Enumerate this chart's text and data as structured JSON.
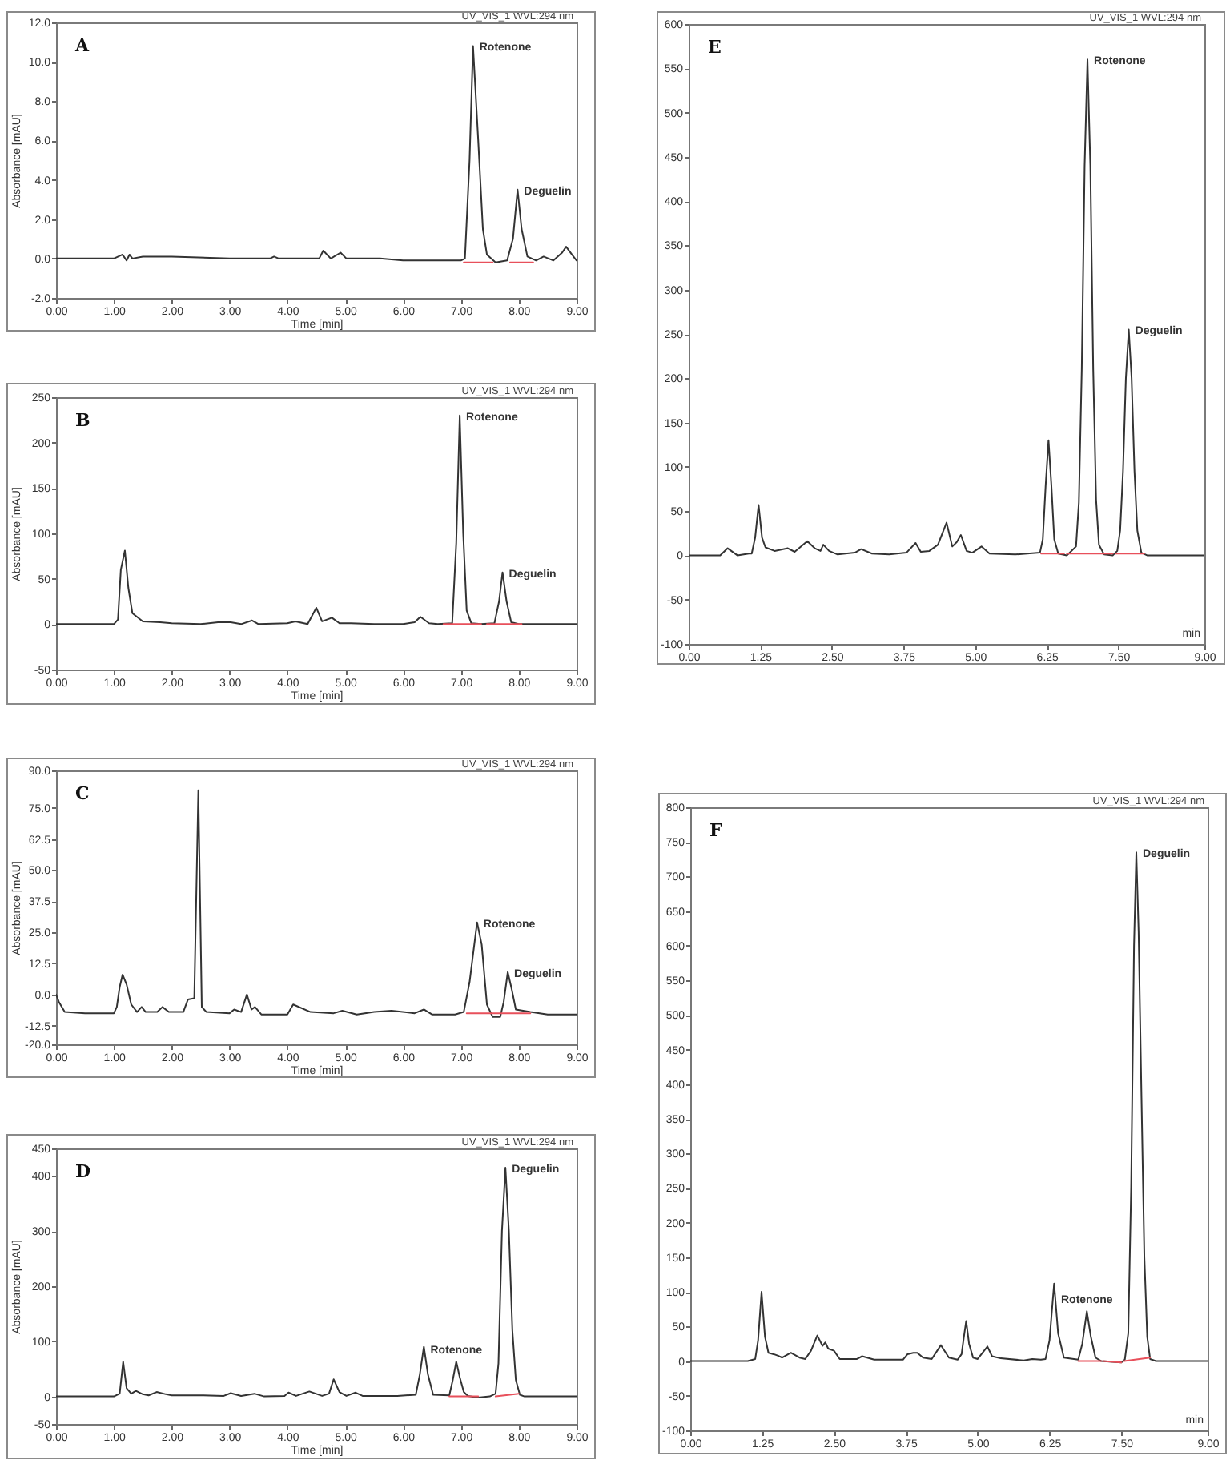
{
  "chart_data": [
    {
      "type": "line",
      "title": "A",
      "subtitle": "UV_VIS_1 WVL:294 nm",
      "xlabel": "Time [min]",
      "ylabel": "Absorbance [mAU]",
      "series": [
        {
          "color": "#333333",
          "x": [
            0,
            1.0,
            1.15,
            1.22,
            1.27,
            1.32,
            1.5,
            2.0,
            3.0,
            3.7,
            3.77,
            3.85,
            4.4,
            4.55,
            4.62,
            4.75,
            4.92,
            5.02,
            5.3,
            5.45,
            5.6,
            6.0,
            6.5,
            7.0,
            7.07,
            7.15,
            7.21,
            7.3,
            7.38,
            7.45,
            7.6,
            7.8,
            7.9,
            7.98,
            8.05,
            8.15,
            8.3,
            8.43,
            8.6,
            8.75,
            8.82,
            8.92,
            9.0
          ],
          "values": [
            0,
            0,
            0.2,
            -0.1,
            0.2,
            0,
            0.1,
            0.1,
            0,
            0,
            0.1,
            0,
            0,
            0,
            0.4,
            0,
            0.3,
            0,
            0,
            0,
            0,
            -0.1,
            -0.1,
            -0.1,
            0,
            5,
            10.8,
            6,
            1.5,
            0.2,
            -0.2,
            -0.1,
            1,
            3.5,
            1.5,
            0.1,
            -0.1,
            0.1,
            -0.1,
            0.3,
            0.6,
            0.2,
            -0.1
          ]
        },
        {
          "color": "#e8505b",
          "x": [
            7.05,
            7.55,
            7.56,
            7.85,
            8.25
          ],
          "values": [
            -0.2,
            -0.2,
            null,
            -0.2,
            -0.2
          ]
        }
      ],
      "xlim": [
        0,
        9
      ],
      "ylim": [
        -2,
        12
      ],
      "xticks": [
        {
          "value": 0,
          "label": "0.00"
        },
        {
          "value": 1,
          "label": "1.00"
        },
        {
          "value": 2,
          "label": "2.00"
        },
        {
          "value": 3,
          "label": "3.00"
        },
        {
          "value": 4,
          "label": "4.00"
        },
        {
          "value": 5,
          "label": "5.00"
        },
        {
          "value": 6,
          "label": "6.00"
        },
        {
          "value": 7,
          "label": "7.00"
        },
        {
          "value": 8,
          "label": "8.00"
        },
        {
          "value": 9,
          "label": "9.00"
        }
      ],
      "yticks": [
        {
          "value": -2,
          "label": "-2.0"
        },
        {
          "value": 0,
          "label": "0.0"
        },
        {
          "value": 2,
          "label": "2.0"
        },
        {
          "value": 4,
          "label": "4.0"
        },
        {
          "value": 6,
          "label": "6.0"
        },
        {
          "value": 8,
          "label": "8.0"
        },
        {
          "value": 10,
          "label": "10.0"
        },
        {
          "value": 12,
          "label": "12.0"
        }
      ],
      "annotations": [
        {
          "text": "Rotenone",
          "x": 7.21,
          "y": 10.8
        },
        {
          "text": "Deguelin",
          "x": 7.98,
          "y": 3.5
        }
      ]
    },
    {
      "type": "line",
      "title": "B",
      "subtitle": "UV_VIS_1 WVL:294 nm",
      "xlabel": "Time [min]",
      "ylabel": "Absorbance [mAU]",
      "series": [
        {
          "color": "#333333",
          "x": [
            0,
            1.0,
            1.07,
            1.12,
            1.19,
            1.25,
            1.32,
            1.4,
            1.5,
            1.8,
            2.0,
            2.5,
            2.8,
            3.02,
            3.2,
            3.39,
            3.5,
            4.0,
            4.14,
            4.35,
            4.5,
            4.6,
            4.77,
            4.9,
            5.1,
            5.5,
            6.0,
            6.2,
            6.3,
            6.45,
            6.6,
            6.85,
            6.92,
            6.98,
            7.04,
            7.1,
            7.18,
            7.35,
            7.58,
            7.66,
            7.72,
            7.79,
            7.87,
            8.0,
            9.0
          ],
          "values": [
            0,
            0,
            5,
            60,
            81,
            40,
            12,
            8,
            3,
            2,
            1,
            0,
            2,
            2,
            0,
            4,
            0,
            1,
            3,
            0,
            18,
            3,
            7,
            1,
            1,
            0,
            0,
            2,
            8,
            1,
            0,
            1,
            90,
            230,
            100,
            15,
            1,
            0,
            1,
            25,
            57,
            25,
            2,
            0,
            0
          ]
        },
        {
          "color": "#e8505b",
          "x": [
            6.7,
            7.35,
            7.4,
            7.45,
            8.05
          ],
          "values": [
            0,
            0,
            null,
            0,
            0
          ]
        }
      ],
      "xlim": [
        0,
        9
      ],
      "ylim": [
        -50,
        250
      ],
      "xticks": [
        {
          "value": 0,
          "label": "0.00"
        },
        {
          "value": 1,
          "label": "1.00"
        },
        {
          "value": 2,
          "label": "2.00"
        },
        {
          "value": 3,
          "label": "3.00"
        },
        {
          "value": 4,
          "label": "4.00"
        },
        {
          "value": 5,
          "label": "5.00"
        },
        {
          "value": 6,
          "label": "6.00"
        },
        {
          "value": 7,
          "label": "7.00"
        },
        {
          "value": 8,
          "label": "8.00"
        },
        {
          "value": 9,
          "label": "9.00"
        }
      ],
      "yticks": [
        -50,
        0,
        50,
        100,
        150,
        200,
        250
      ],
      "annotations": [
        {
          "text": "Rotenone",
          "x": 6.98,
          "y": 230
        },
        {
          "text": "Deguelin",
          "x": 7.72,
          "y": 57
        }
      ]
    },
    {
      "type": "line",
      "title": "C",
      "subtitle": "UV_VIS_1 WVL:294 nm",
      "xlabel": "Time [min]",
      "ylabel": "Absorbance [mAU]",
      "series": [
        {
          "color": "#333333",
          "x": [
            0,
            0.05,
            0.15,
            0.5,
            1.0,
            1.05,
            1.1,
            1.15,
            1.22,
            1.3,
            1.4,
            1.48,
            1.55,
            1.75,
            1.84,
            1.95,
            2.2,
            2.28,
            2.39,
            2.46,
            2.52,
            2.6,
            3.0,
            3.08,
            3.2,
            3.3,
            3.38,
            3.44,
            3.55,
            4.0,
            4.1,
            4.4,
            4.8,
            4.95,
            5.2,
            5.5,
            5.8,
            6.2,
            6.36,
            6.5,
            6.9,
            7.05,
            7.15,
            7.28,
            7.36,
            7.45,
            7.55,
            7.68,
            7.74,
            7.81,
            7.88,
            7.95,
            8.2,
            8.5,
            9.0
          ],
          "values": [
            0,
            -3,
            -7,
            -7.5,
            -7.5,
            -5,
            3,
            8,
            4,
            -4,
            -7,
            -5,
            -7,
            -7,
            -5,
            -7,
            -7,
            -2,
            -1.5,
            82,
            -5,
            -7,
            -7.5,
            -6,
            -7,
            0,
            -6,
            -5,
            -8,
            -8,
            -4,
            -7,
            -7.5,
            -6.5,
            -8,
            -7,
            -6.5,
            -7.5,
            -6,
            -8,
            -8,
            -7,
            5,
            29,
            20,
            -4,
            -9,
            -9,
            -3,
            9,
            2,
            -6,
            -7,
            -8,
            -8
          ]
        },
        {
          "color": "#e8505b",
          "x": [
            7.1,
            8.2
          ],
          "values": [
            -7.5,
            -7.5
          ]
        }
      ],
      "xlim": [
        0,
        9
      ],
      "ylim": [
        -20,
        90
      ],
      "xticks": [
        {
          "value": 0,
          "label": "0.00"
        },
        {
          "value": 1,
          "label": "1.00"
        },
        {
          "value": 2,
          "label": "2.00"
        },
        {
          "value": 3,
          "label": "3.00"
        },
        {
          "value": 4,
          "label": "4.00"
        },
        {
          "value": 5,
          "label": "5.00"
        },
        {
          "value": 6,
          "label": "6.00"
        },
        {
          "value": 7,
          "label": "7.00"
        },
        {
          "value": 8,
          "label": "8.00"
        },
        {
          "value": 9,
          "label": "9.00"
        }
      ],
      "yticks": [
        {
          "value": -20,
          "label": "-20.0"
        },
        {
          "value": -12.5,
          "label": "-12.5"
        },
        {
          "value": 0,
          "label": "0.0"
        },
        {
          "value": 12.5,
          "label": "12.5"
        },
        {
          "value": 25,
          "label": "25.0"
        },
        {
          "value": 37.5,
          "label": "37.5"
        },
        {
          "value": 50,
          "label": "50.0"
        },
        {
          "value": 62.5,
          "label": "62.5"
        },
        {
          "value": 75,
          "label": "75.0"
        },
        {
          "value": 90,
          "label": "90.0"
        }
      ],
      "annotations": [
        {
          "text": "Rotenone",
          "x": 7.28,
          "y": 29
        },
        {
          "text": "Deguelin",
          "x": 7.81,
          "y": 9
        }
      ]
    },
    {
      "type": "line",
      "title": "D",
      "subtitle": "UV_VIS_1 WVL:294 nm",
      "xlabel": "Time [min]",
      "ylabel": "Absorbance [mAU]",
      "series": [
        {
          "color": "#333333",
          "x": [
            0,
            1.0,
            1.1,
            1.16,
            1.22,
            1.3,
            1.38,
            1.5,
            1.6,
            1.74,
            1.9,
            2.0,
            2.5,
            2.9,
            3.02,
            3.2,
            3.43,
            3.6,
            3.95,
            4.02,
            4.15,
            4.38,
            4.6,
            4.72,
            4.8,
            4.9,
            5.02,
            5.18,
            5.3,
            5.9,
            6.22,
            6.29,
            6.36,
            6.43,
            6.52,
            6.8,
            6.86,
            6.92,
            6.98,
            7.05,
            7.12,
            7.3,
            7.5,
            7.6,
            7.65,
            7.71,
            7.77,
            7.83,
            7.89,
            7.95,
            8.02,
            8.1,
            9.0
          ],
          "values": [
            0,
            0,
            5,
            63,
            15,
            5,
            10,
            4,
            2,
            8,
            4,
            2,
            2,
            1,
            6,
            1,
            5,
            0,
            1,
            7,
            1,
            9,
            1,
            5,
            31,
            8,
            1,
            7,
            1,
            1,
            3,
            40,
            90,
            40,
            3,
            2,
            30,
            63,
            35,
            8,
            1,
            -2,
            0,
            5,
            60,
            300,
            415,
            300,
            120,
            30,
            3,
            0,
            0
          ]
        },
        {
          "color": "#e8505b",
          "x": [
            6.8,
            7.3,
            7.35,
            7.6,
            8.0
          ],
          "values": [
            0,
            0,
            null,
            0,
            5
          ]
        }
      ],
      "xlim": [
        0,
        9
      ],
      "ylim": [
        -50,
        450
      ],
      "xticks": [
        {
          "value": 0,
          "label": "0.00"
        },
        {
          "value": 1,
          "label": "1.00"
        },
        {
          "value": 2,
          "label": "2.00"
        },
        {
          "value": 3,
          "label": "3.00"
        },
        {
          "value": 4,
          "label": "4.00"
        },
        {
          "value": 5,
          "label": "5.00"
        },
        {
          "value": 6,
          "label": "6.00"
        },
        {
          "value": 7,
          "label": "7.00"
        },
        {
          "value": 8,
          "label": "8.00"
        },
        {
          "value": 9,
          "label": "9.00"
        }
      ],
      "yticks": [
        -50,
        0,
        100,
        200,
        300,
        400,
        450
      ],
      "annotations": [
        {
          "text": "Rotenone",
          "x": 6.92,
          "y": 63
        },
        {
          "text": "Deguelin",
          "x": 7.77,
          "y": 415
        }
      ]
    },
    {
      "type": "line",
      "title": "E",
      "subtitle": "UV_VIS_1 WVL:294 nm",
      "xlabel": "min",
      "series": [
        {
          "color": "#333333",
          "x": [
            0,
            0.55,
            0.68,
            0.85,
            1.05,
            1.1,
            1.16,
            1.22,
            1.28,
            1.34,
            1.5,
            1.73,
            1.85,
            2.07,
            2.2,
            2.3,
            2.35,
            2.45,
            2.6,
            2.9,
            3.01,
            3.2,
            3.5,
            3.8,
            3.96,
            4.05,
            4.2,
            4.35,
            4.5,
            4.6,
            4.68,
            4.75,
            4.85,
            4.95,
            5.11,
            5.25,
            5.7,
            6.13,
            6.18,
            6.23,
            6.28,
            6.33,
            6.38,
            6.45,
            6.6,
            6.76,
            6.81,
            6.86,
            6.91,
            6.96,
            7.01,
            7.06,
            7.11,
            7.16,
            7.25,
            7.4,
            7.48,
            7.53,
            7.58,
            7.63,
            7.68,
            7.73,
            7.78,
            7.83,
            7.9,
            8.0,
            9.0
          ],
          "values": [
            0,
            0,
            8,
            0,
            2,
            2,
            20,
            57,
            20,
            9,
            5,
            8,
            4,
            16,
            8,
            5,
            12,
            5,
            1,
            3,
            7,
            2,
            1,
            3,
            14,
            4,
            5,
            12,
            37,
            10,
            15,
            23,
            5,
            3,
            10,
            2,
            1,
            3,
            18,
            79,
            130,
            79,
            18,
            2,
            0,
            10,
            60,
            210,
            440,
            560,
            440,
            210,
            63,
            12,
            1,
            0,
            5,
            28,
            95,
            200,
            255,
            200,
            95,
            28,
            3,
            0,
            0
          ]
        },
        {
          "color": "#e8505b",
          "x": [
            6.15,
            6.55,
            6.57,
            6.6,
            7.4,
            7.42,
            7.45,
            7.95
          ],
          "values": [
            2,
            2,
            null,
            2,
            2,
            null,
            2,
            2
          ]
        }
      ],
      "xlim": [
        0,
        9
      ],
      "ylim": [
        -100,
        600
      ],
      "xticks": [
        {
          "value": 0,
          "label": "0.00"
        },
        {
          "value": 1.25,
          "label": "1.25"
        },
        {
          "value": 2.5,
          "label": "2.50"
        },
        {
          "value": 3.75,
          "label": "3.75"
        },
        {
          "value": 5,
          "label": "5.00"
        },
        {
          "value": 6.25,
          "label": "6.25"
        },
        {
          "value": 7.5,
          "label": "7.50"
        },
        {
          "value": 9,
          "label": "9.00"
        }
      ],
      "yticks": [
        -100,
        -50,
        0,
        50,
        100,
        150,
        200,
        250,
        300,
        350,
        400,
        450,
        500,
        550,
        600
      ],
      "annotations": [
        {
          "text": "Rotenone",
          "x": 6.96,
          "y": 560
        },
        {
          "text": "Deguelin",
          "x": 7.68,
          "y": 255
        }
      ]
    },
    {
      "type": "line",
      "title": "F",
      "subtitle": "UV_VIS_1 WVL:294 nm",
      "xlabel": "min",
      "series": [
        {
          "color": "#333333",
          "x": [
            0,
            1.0,
            1.13,
            1.18,
            1.24,
            1.3,
            1.36,
            1.45,
            1.52,
            1.6,
            1.75,
            1.9,
            2.0,
            2.1,
            2.21,
            2.3,
            2.35,
            2.4,
            2.5,
            2.6,
            2.9,
            2.99,
            3.2,
            3.7,
            3.78,
            3.88,
            3.95,
            4.05,
            4.2,
            4.36,
            4.5,
            4.65,
            4.72,
            4.76,
            4.8,
            4.85,
            4.92,
            5.0,
            5.17,
            5.25,
            5.4,
            5.8,
            5.95,
            6.1,
            6.18,
            6.25,
            6.33,
            6.4,
            6.5,
            6.75,
            6.82,
            6.9,
            6.97,
            7.05,
            7.15,
            7.5,
            7.56,
            7.62,
            7.67,
            7.72,
            7.76,
            7.8,
            7.85,
            7.9,
            7.95,
            8.0,
            8.1,
            9.0
          ],
          "values": [
            0,
            0,
            3,
            30,
            100,
            35,
            12,
            10,
            8,
            5,
            12,
            5,
            3,
            15,
            37,
            22,
            27,
            18,
            15,
            3,
            3,
            7,
            2,
            2,
            10,
            12,
            12,
            5,
            3,
            23,
            5,
            2,
            10,
            35,
            58,
            25,
            5,
            3,
            21,
            7,
            4,
            1,
            3,
            2,
            3,
            30,
            112,
            40,
            5,
            2,
            25,
            72,
            35,
            5,
            0,
            -2,
            2,
            40,
            250,
            600,
            735,
            620,
            380,
            150,
            35,
            3,
            0,
            0
          ]
        },
        {
          "color": "#e8505b",
          "x": [
            6.75,
            7.15,
            7.16,
            7.18,
            7.5,
            7.52,
            7.55,
            8.0
          ],
          "values": [
            0,
            0,
            null,
            0,
            -2,
            null,
            0,
            5
          ]
        }
      ],
      "xlim": [
        0,
        9
      ],
      "ylim": [
        -100,
        800
      ],
      "xticks": [
        {
          "value": 0,
          "label": "0.00"
        },
        {
          "value": 1.25,
          "label": "1.25"
        },
        {
          "value": 2.5,
          "label": "2.50"
        },
        {
          "value": 3.75,
          "label": "3.75"
        },
        {
          "value": 5,
          "label": "5.00"
        },
        {
          "value": 6.25,
          "label": "6.25"
        },
        {
          "value": 7.5,
          "label": "7.50"
        },
        {
          "value": 9,
          "label": "9.00"
        }
      ],
      "yticks": [
        -100,
        -50,
        0,
        50,
        100,
        150,
        200,
        250,
        300,
        350,
        400,
        450,
        500,
        550,
        600,
        650,
        700,
        750,
        800
      ],
      "annotations": [
        {
          "text": "Rotenone",
          "x": 6.9,
          "y": 72
        },
        {
          "text": "Deguelin",
          "x": 7.76,
          "y": 735
        }
      ]
    }
  ]
}
